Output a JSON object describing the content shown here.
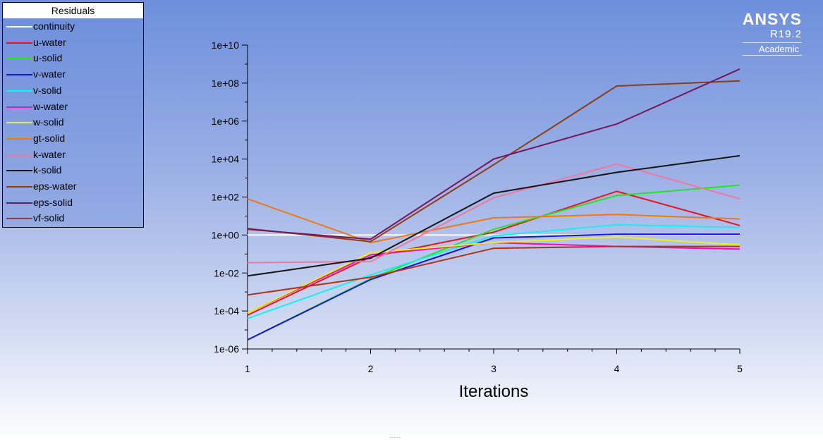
{
  "brand": {
    "name": "ANSYS",
    "version": "R19.2",
    "edition": "Academic"
  },
  "legend_title": "Residuals",
  "chart_data": {
    "type": "line",
    "title": "",
    "xlabel": "Iterations",
    "ylabel": "",
    "x": [
      1,
      2,
      3,
      4,
      5
    ],
    "xticks": [
      "1",
      "2",
      "3",
      "4",
      "5"
    ],
    "xlim": [
      1,
      5
    ],
    "yscale": "log",
    "ylim": [
      1e-06,
      10000000000.0
    ],
    "yticks": [
      1e-06,
      0.0001,
      0.01,
      1,
      100,
      10000,
      1000000,
      100000000,
      10000000000
    ],
    "ytick_labels": [
      "1e-06",
      "1e-04",
      "1e-02",
      "1e+00",
      "1e+02",
      "1e+04",
      "1e+06",
      "1e+08",
      "1e+10"
    ],
    "grid": false,
    "legend_position": "top-left",
    "series": [
      {
        "name": "continuity",
        "color": "#ffffff",
        "values": [
          1,
          1,
          1,
          1,
          1
        ]
      },
      {
        "name": "u-water",
        "color": "#e8141e",
        "values": [
          6e-05,
          0.07,
          1.4,
          200,
          3.2
        ]
      },
      {
        "name": "u-solid",
        "color": "#1ee81e",
        "values": [
          3e-06,
          0.005,
          2,
          120,
          420
        ]
      },
      {
        "name": "v-water",
        "color": "#1414dc",
        "values": [
          3e-06,
          0.0045,
          0.7,
          1.1,
          1.1
        ]
      },
      {
        "name": "v-solid",
        "color": "#14f0f0",
        "values": [
          4e-05,
          0.008,
          0.9,
          3.5,
          2.5
        ]
      },
      {
        "name": "w-water",
        "color": "#e814b4",
        "values": [
          8e-05,
          0.09,
          0.4,
          0.25,
          0.18
        ]
      },
      {
        "name": "w-solid",
        "color": "#f0f014",
        "values": [
          8e-05,
          0.12,
          0.4,
          0.8,
          0.3
        ]
      },
      {
        "name": "gt-solid",
        "color": "#f07814",
        "values": [
          80,
          0.4,
          8,
          12,
          7
        ]
      },
      {
        "name": "k-water",
        "color": "#f078a0",
        "values": [
          0.035,
          0.04,
          90,
          5500,
          80
        ]
      },
      {
        "name": "k-solid",
        "color": "#141414",
        "values": [
          0.007,
          0.06,
          160,
          2000,
          15000
        ]
      },
      {
        "name": "eps-water",
        "color": "#8c3c14",
        "values": [
          2.2,
          0.45,
          5000,
          70000000,
          130000000
        ]
      },
      {
        "name": "eps-solid",
        "color": "#78145a",
        "values": [
          2,
          0.6,
          10000,
          700000,
          550000000
        ]
      },
      {
        "name": "vf-solid",
        "color": "#b43214",
        "values": [
          0.0007,
          0.006,
          0.2,
          0.25,
          0.25
        ]
      }
    ]
  },
  "footer": {
    "dots": "......"
  }
}
